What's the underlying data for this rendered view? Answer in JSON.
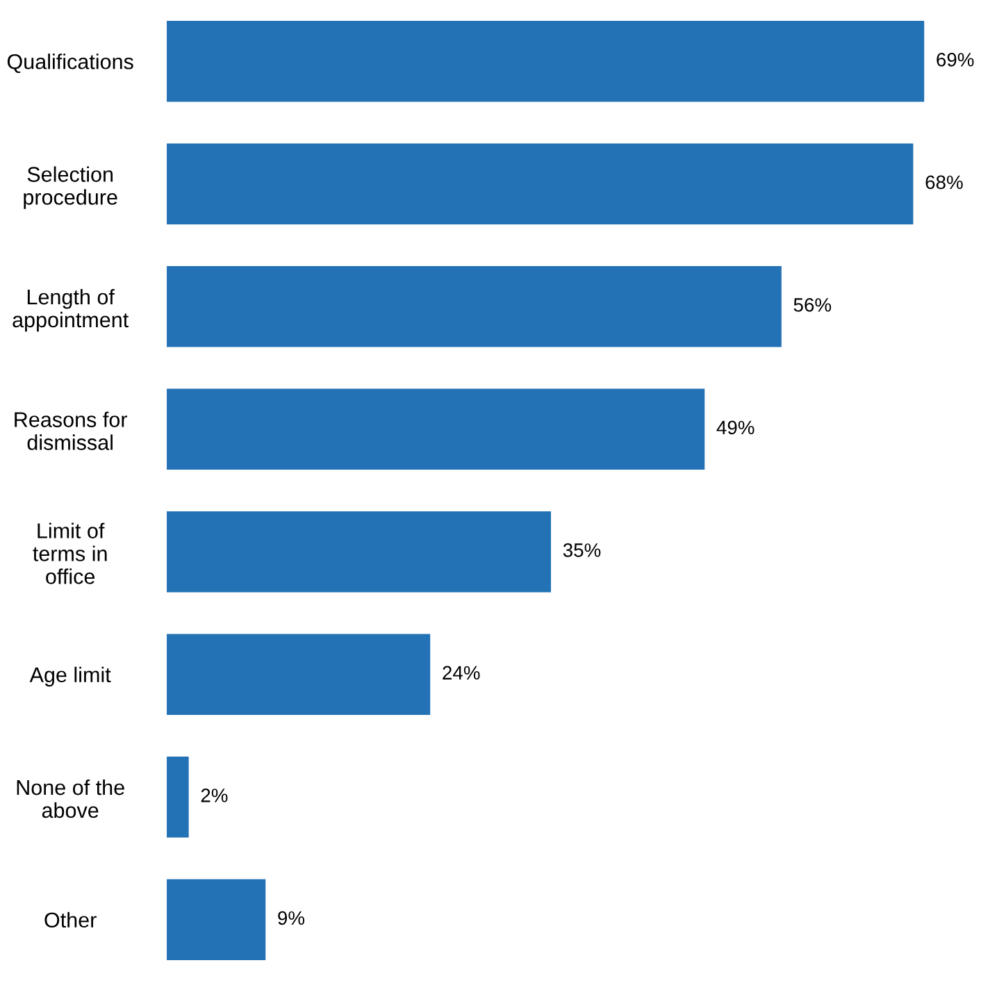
{
  "chart_data": {
    "type": "bar",
    "orientation": "horizontal",
    "categories": [
      "Qualifications",
      "Selection\nprocedure",
      "Length of\nappointment",
      "Reasons for\ndismissal",
      "Limit of\nterms in\noffice",
      "Age limit",
      "None of the\nabove",
      "Other"
    ],
    "values": [
      69,
      68,
      56,
      49,
      35,
      24,
      2,
      9
    ],
    "value_labels": [
      "69%",
      "68%",
      "56%",
      "49%",
      "35%",
      "24%",
      "2%",
      "9%"
    ],
    "color": "#2272b5",
    "grid": false,
    "legend": false
  }
}
